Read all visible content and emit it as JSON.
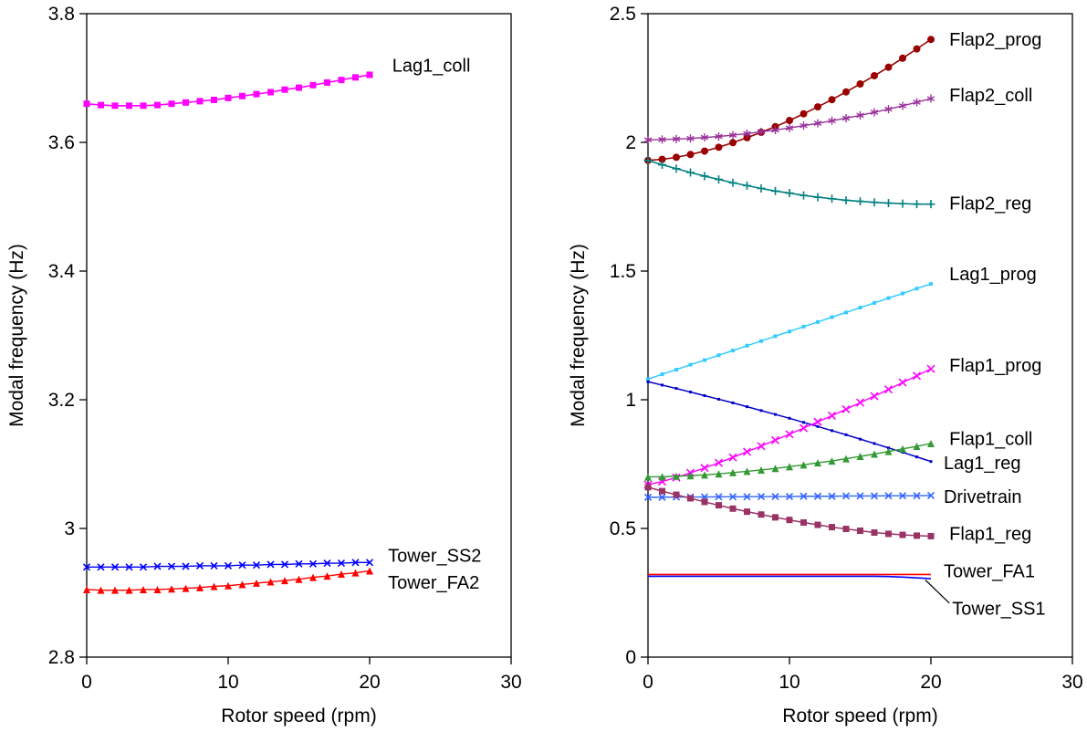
{
  "page": {
    "background": "#ffffff"
  },
  "chart_data": [
    {
      "id": "left",
      "type": "line",
      "title": "",
      "xlabel": "Rotor speed (rpm)",
      "ylabel": "Modal frequency (Hz)",
      "xlim": [
        0,
        30
      ],
      "ylim": [
        2.8,
        3.8
      ],
      "xticks": {
        "values": [
          0,
          10,
          20,
          30
        ],
        "labels": [
          "0",
          "10",
          "20",
          "30"
        ]
      },
      "yticks": {
        "values": [
          2.8,
          3.0,
          3.2,
          3.4,
          3.6,
          3.8
        ],
        "labels": [
          "2.8",
          "3",
          "3.2",
          "3.4",
          "3.6",
          "3.8"
        ]
      },
      "x": [
        0,
        1,
        2,
        3,
        4,
        5,
        6,
        7,
        8,
        9,
        10,
        11,
        12,
        13,
        14,
        15,
        16,
        17,
        18,
        19,
        20
      ],
      "series": [
        {
          "name": "Lag1_coll",
          "color": "#FF00FF",
          "marker": "square",
          "marker_size": 7,
          "line_width": 1.6,
          "values": [
            3.66,
            3.658,
            3.657,
            3.657,
            3.657,
            3.658,
            3.66,
            3.662,
            3.664,
            3.666,
            3.669,
            3.672,
            3.675,
            3.678,
            3.682,
            3.685,
            3.689,
            3.693,
            3.697,
            3.701,
            3.705
          ],
          "label": {
            "text": "Lag1_coll",
            "x": 21.6,
            "y": 3.72
          }
        },
        {
          "name": "Tower_SS2",
          "color": "#0000FF",
          "marker": "x",
          "marker_size": 7,
          "line_width": 1.4,
          "values": [
            2.94,
            2.94,
            2.94,
            2.94,
            2.94,
            2.941,
            2.941,
            2.941,
            2.942,
            2.942,
            2.942,
            2.943,
            2.943,
            2.944,
            2.944,
            2.945,
            2.945,
            2.946,
            2.946,
            2.947,
            2.947
          ],
          "label": {
            "text": "Tower_SS2",
            "x": 21.3,
            "y": 2.958
          }
        },
        {
          "name": "Tower_FA2",
          "color": "#FF0000",
          "marker": "triangle",
          "marker_size": 8,
          "line_width": 1.4,
          "values": [
            2.905,
            2.904,
            2.904,
            2.904,
            2.905,
            2.905,
            2.906,
            2.907,
            2.908,
            2.91,
            2.911,
            2.913,
            2.915,
            2.917,
            2.919,
            2.921,
            2.924,
            2.926,
            2.929,
            2.931,
            2.934
          ],
          "label": {
            "text": "Tower_FA2",
            "x": 21.3,
            "y": 2.916
          }
        }
      ]
    },
    {
      "id": "right",
      "type": "line",
      "title": "",
      "xlabel": "Rotor speed (rpm)",
      "ylabel": "Modal frequency (Hz)",
      "xlim": [
        0,
        30
      ],
      "ylim": [
        0,
        2.5
      ],
      "xticks": {
        "values": [
          0,
          10,
          20,
          30
        ],
        "labels": [
          "0",
          "10",
          "20",
          "30"
        ]
      },
      "yticks": {
        "values": [
          0,
          0.5,
          1.0,
          1.5,
          2.0,
          2.5
        ],
        "labels": [
          "0",
          "0.5",
          "1",
          "1.5",
          "2",
          "2.5"
        ]
      },
      "x": [
        0,
        1,
        2,
        3,
        4,
        5,
        6,
        7,
        8,
        9,
        10,
        11,
        12,
        13,
        14,
        15,
        16,
        17,
        18,
        19,
        20
      ],
      "series": [
        {
          "name": "Flap2_prog",
          "color": "#990000",
          "marker": "circle",
          "marker_size": 8,
          "line_width": 1.6,
          "values": [
            1.93,
            1.934,
            1.942,
            1.953,
            1.966,
            1.981,
            1.999,
            2.018,
            2.039,
            2.061,
            2.085,
            2.111,
            2.138,
            2.166,
            2.196,
            2.227,
            2.259,
            2.292,
            2.327,
            2.363,
            2.4
          ],
          "label": {
            "text": "Flap2_prog",
            "x": 21.3,
            "y": 2.4
          }
        },
        {
          "name": "Flap2_coll",
          "color": "#993399",
          "marker": "asterisk",
          "marker_size": 9,
          "line_width": 1.4,
          "values": [
            2.01,
            2.011,
            2.013,
            2.015,
            2.019,
            2.023,
            2.028,
            2.034,
            2.041,
            2.048,
            2.056,
            2.065,
            2.074,
            2.084,
            2.094,
            2.105,
            2.117,
            2.129,
            2.142,
            2.156,
            2.17
          ],
          "label": {
            "text": "Flap2_coll",
            "x": 21.3,
            "y": 2.185
          }
        },
        {
          "name": "Flap2_reg",
          "color": "#008080",
          "marker": "plus",
          "marker_size": 9,
          "line_width": 1.6,
          "values": [
            1.93,
            1.913,
            1.898,
            1.883,
            1.869,
            1.856,
            1.843,
            1.832,
            1.821,
            1.811,
            1.803,
            1.794,
            1.787,
            1.781,
            1.775,
            1.771,
            1.767,
            1.764,
            1.762,
            1.76,
            1.76
          ],
          "label": {
            "text": "Flap2_reg",
            "x": 21.3,
            "y": 1.765
          }
        },
        {
          "name": "Lag1_prog",
          "color": "#33CCFF",
          "marker": "square",
          "marker_size": 4,
          "line_width": 1.5,
          "values": [
            1.08,
            1.099,
            1.117,
            1.136,
            1.154,
            1.173,
            1.191,
            1.21,
            1.228,
            1.247,
            1.265,
            1.284,
            1.302,
            1.321,
            1.339,
            1.358,
            1.376,
            1.395,
            1.413,
            1.432,
            1.45
          ],
          "label": {
            "text": "Lag1_prog",
            "x": 21.3,
            "y": 1.49
          }
        },
        {
          "name": "Lag1_reg",
          "color": "#0000CC",
          "marker": "square",
          "marker_size": 3,
          "line_width": 1.5,
          "values": [
            1.07,
            1.057,
            1.044,
            1.03,
            1.016,
            1.002,
            0.988,
            0.973,
            0.958,
            0.943,
            0.928,
            0.912,
            0.896,
            0.88,
            0.864,
            0.847,
            0.83,
            0.813,
            0.796,
            0.778,
            0.76
          ],
          "label": {
            "text": "Lag1_reg",
            "x": 20.9,
            "y": 0.755
          }
        },
        {
          "name": "Flap1_prog",
          "color": "#FF00FF",
          "marker": "x",
          "marker_size": 8,
          "line_width": 1.4,
          "values": [
            0.67,
            0.682,
            0.698,
            0.716,
            0.735,
            0.755,
            0.776,
            0.798,
            0.82,
            0.843,
            0.866,
            0.89,
            0.914,
            0.938,
            0.963,
            0.989,
            1.014,
            1.04,
            1.067,
            1.093,
            1.12
          ],
          "label": {
            "text": "Flap1_prog",
            "x": 21.3,
            "y": 1.135
          }
        },
        {
          "name": "Flap1_coll",
          "color": "#339933",
          "marker": "triangle",
          "marker_size": 8,
          "line_width": 1.4,
          "values": [
            0.7,
            0.701,
            0.703,
            0.705,
            0.708,
            0.712,
            0.717,
            0.722,
            0.727,
            0.733,
            0.74,
            0.747,
            0.755,
            0.762,
            0.771,
            0.78,
            0.789,
            0.799,
            0.809,
            0.819,
            0.83
          ],
          "label": {
            "text": "Flap1_coll",
            "x": 21.3,
            "y": 0.85
          }
        },
        {
          "name": "Drivetrain",
          "color": "#3366FF",
          "marker": "x",
          "marker_size": 7,
          "line_width": 1.4,
          "values": [
            0.621,
            0.621,
            0.622,
            0.622,
            0.622,
            0.623,
            0.623,
            0.623,
            0.624,
            0.624,
            0.624,
            0.625,
            0.625,
            0.625,
            0.626,
            0.626,
            0.626,
            0.627,
            0.627,
            0.627,
            0.628
          ],
          "label": {
            "text": "Drivetrain",
            "x": 20.9,
            "y": 0.625
          }
        },
        {
          "name": "Flap1_reg",
          "color": "#993366",
          "marker": "square",
          "marker_size": 7,
          "line_width": 1.5,
          "values": [
            0.66,
            0.645,
            0.631,
            0.617,
            0.603,
            0.59,
            0.577,
            0.565,
            0.554,
            0.543,
            0.533,
            0.523,
            0.514,
            0.505,
            0.498,
            0.491,
            0.484,
            0.479,
            0.475,
            0.472,
            0.47
          ],
          "label": {
            "text": "Flap1_reg",
            "x": 21.3,
            "y": 0.48
          }
        },
        {
          "name": "Tower_FA1",
          "color": "#FF0000",
          "marker": "none",
          "marker_size": 0,
          "line_width": 1.6,
          "values": [
            0.321,
            0.321,
            0.321,
            0.321,
            0.321,
            0.321,
            0.321,
            0.321,
            0.321,
            0.321,
            0.321,
            0.321,
            0.321,
            0.321,
            0.321,
            0.321,
            0.321,
            0.321,
            0.321,
            0.321,
            0.321
          ],
          "label": {
            "text": "Tower_FA1",
            "x": 20.9,
            "y": 0.335
          }
        },
        {
          "name": "Tower_SS1",
          "color": "#0000FF",
          "marker": "none",
          "marker_size": 0,
          "line_width": 1.6,
          "values": [
            0.314,
            0.314,
            0.314,
            0.314,
            0.314,
            0.314,
            0.314,
            0.314,
            0.314,
            0.314,
            0.314,
            0.314,
            0.314,
            0.314,
            0.314,
            0.314,
            0.314,
            0.313,
            0.311,
            0.308,
            0.305
          ],
          "label": {
            "text": "Tower_SS1",
            "x": 21.5,
            "y": 0.19
          },
          "leader": {
            "from": [
              21.3,
              0.21
            ],
            "to": [
              19.6,
              0.3
            ]
          }
        }
      ]
    }
  ]
}
